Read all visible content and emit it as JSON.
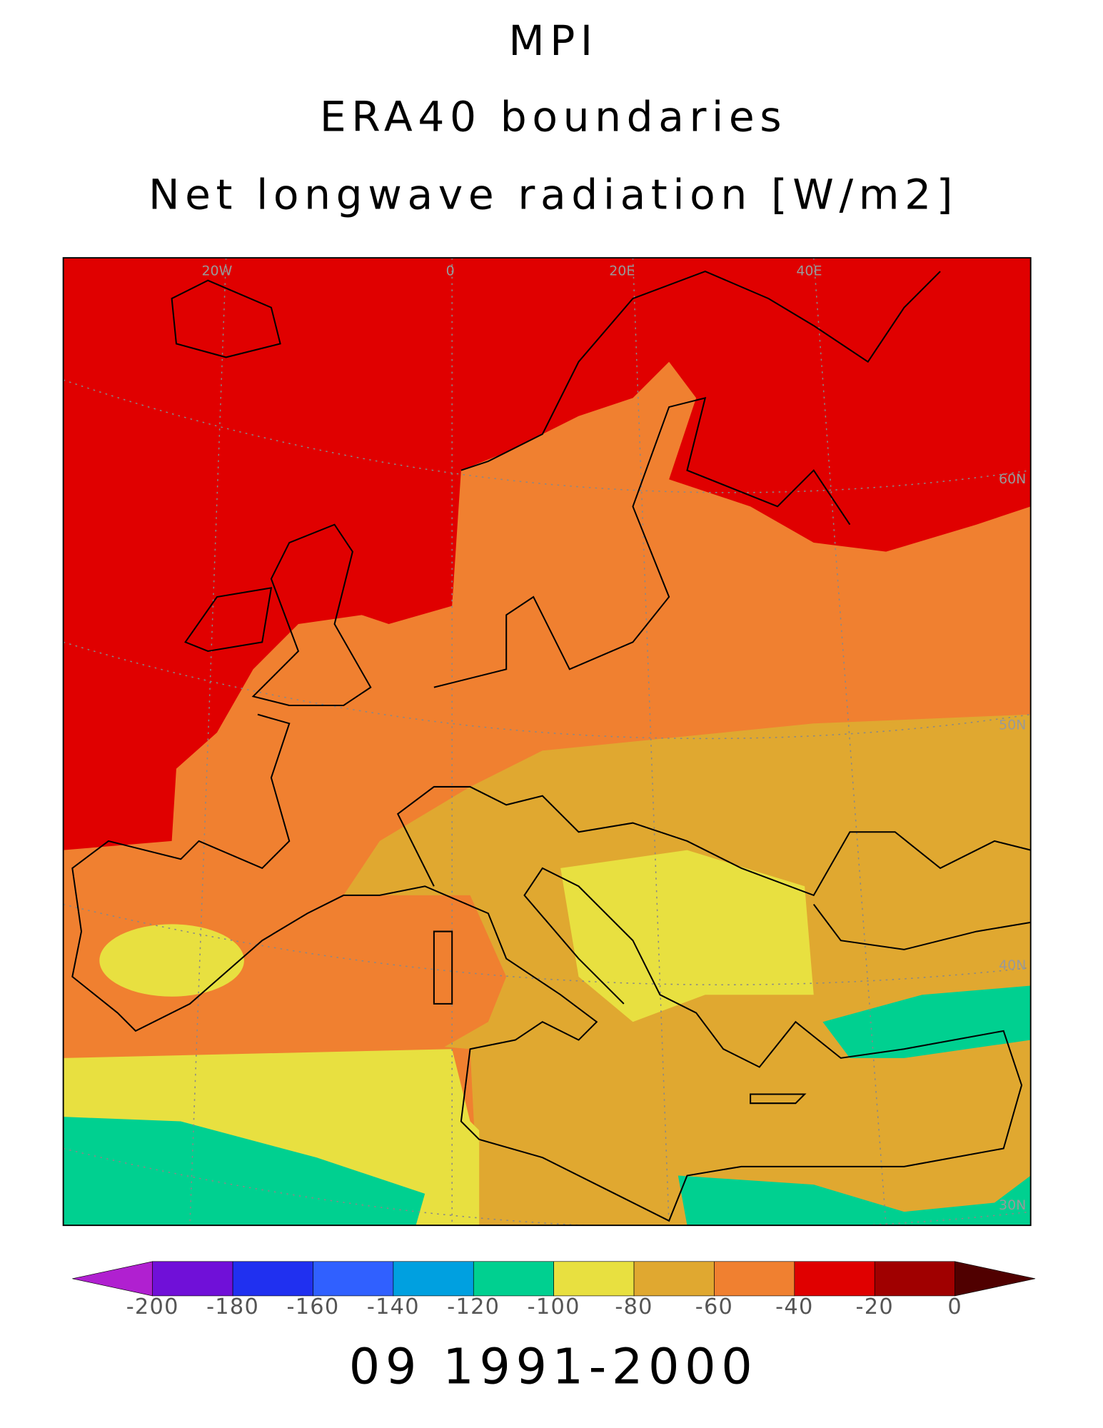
{
  "map": {
    "titles": [
      "MPI",
      "ERA40 boundaries",
      "Net longwave radiation [W/m2]"
    ],
    "graticule_labels": [
      "20W",
      "0",
      "20E",
      "40E",
      "60N",
      "50N",
      "40N",
      "30N"
    ],
    "colorbar": {
      "ticks": [
        -200,
        -180,
        -160,
        -140,
        -120,
        -100,
        -80,
        -60,
        -40,
        -20,
        0
      ],
      "colors": [
        "#b020d0",
        "#7010d8",
        "#2030f0",
        "#3060ff",
        "#00a0e0",
        "#00d090",
        "#e8e040",
        "#e0a830",
        "#f08030",
        "#e00000",
        "#a00000",
        "#500000"
      ]
    },
    "caption": "09 1991-2000"
  }
}
